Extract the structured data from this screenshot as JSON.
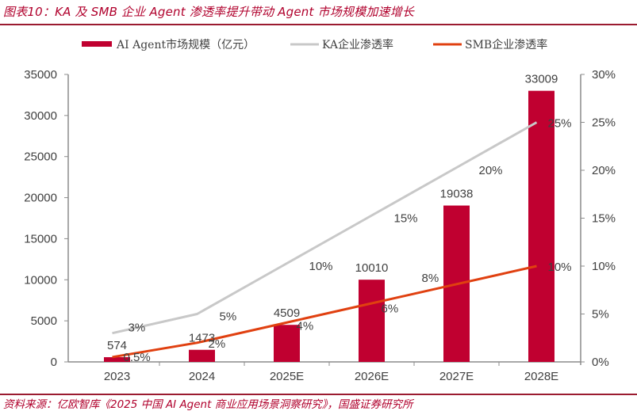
{
  "header": {
    "title": "图表10：KA 及 SMB 企业 Agent 渗透率提升带动 Agent 市场规模加速增长"
  },
  "footer": {
    "source": "资料来源：亿欧智库《2025 中国 AI Agent 商业应用场景洞察研究》，国盛证券研究所"
  },
  "colors": {
    "bar": "#c00030",
    "ka_line": "#c8c8c8",
    "smb_line": "#e04010",
    "axis": "#8c8c8c",
    "text": "#404040",
    "accent": "#b0002c"
  },
  "chart_data": {
    "type": "bar+line",
    "title": "KA 及 SMB 企业 Agent 渗透率提升带动 Agent 市场规模加速增长",
    "categories": [
      "2023",
      "2024",
      "2025E",
      "2026E",
      "2027E",
      "2028E"
    ],
    "series": [
      {
        "name": "AI Agent市场规模（亿元）",
        "type": "bar",
        "axis": "left",
        "values": [
          574,
          1473,
          4509,
          10010,
          19038,
          33009
        ],
        "labels": [
          "574",
          "1473",
          "4509",
          "10010",
          "19038",
          "33009"
        ]
      },
      {
        "name": "KA企业渗透率",
        "type": "line",
        "axis": "right",
        "values": [
          3,
          5,
          10,
          15,
          20,
          25
        ],
        "labels": [
          "3%",
          "5%",
          "10%",
          "15%",
          "20%",
          "25%"
        ]
      },
      {
        "name": "SMB企业渗透率",
        "type": "line",
        "axis": "right",
        "values": [
          0.5,
          2,
          4,
          6,
          8,
          10
        ],
        "labels": [
          "0.5%",
          "2%",
          "4%",
          "6%",
          "8%",
          "10%"
        ]
      }
    ],
    "left_axis": {
      "ylim": [
        0,
        35000
      ],
      "ticks": [
        0,
        5000,
        10000,
        15000,
        20000,
        25000,
        30000,
        35000
      ],
      "tick_labels": [
        "0",
        "5000",
        "10000",
        "15000",
        "20000",
        "25000",
        "30000",
        "35000"
      ]
    },
    "right_axis": {
      "ylim": [
        0,
        30
      ],
      "ticks": [
        0,
        5,
        10,
        15,
        20,
        25,
        30
      ],
      "tick_labels": [
        "0%",
        "5%",
        "10%",
        "15%",
        "20%",
        "25%",
        "30%"
      ]
    },
    "xlabel": "",
    "ylabel": "",
    "grid": false,
    "legend": "top"
  }
}
